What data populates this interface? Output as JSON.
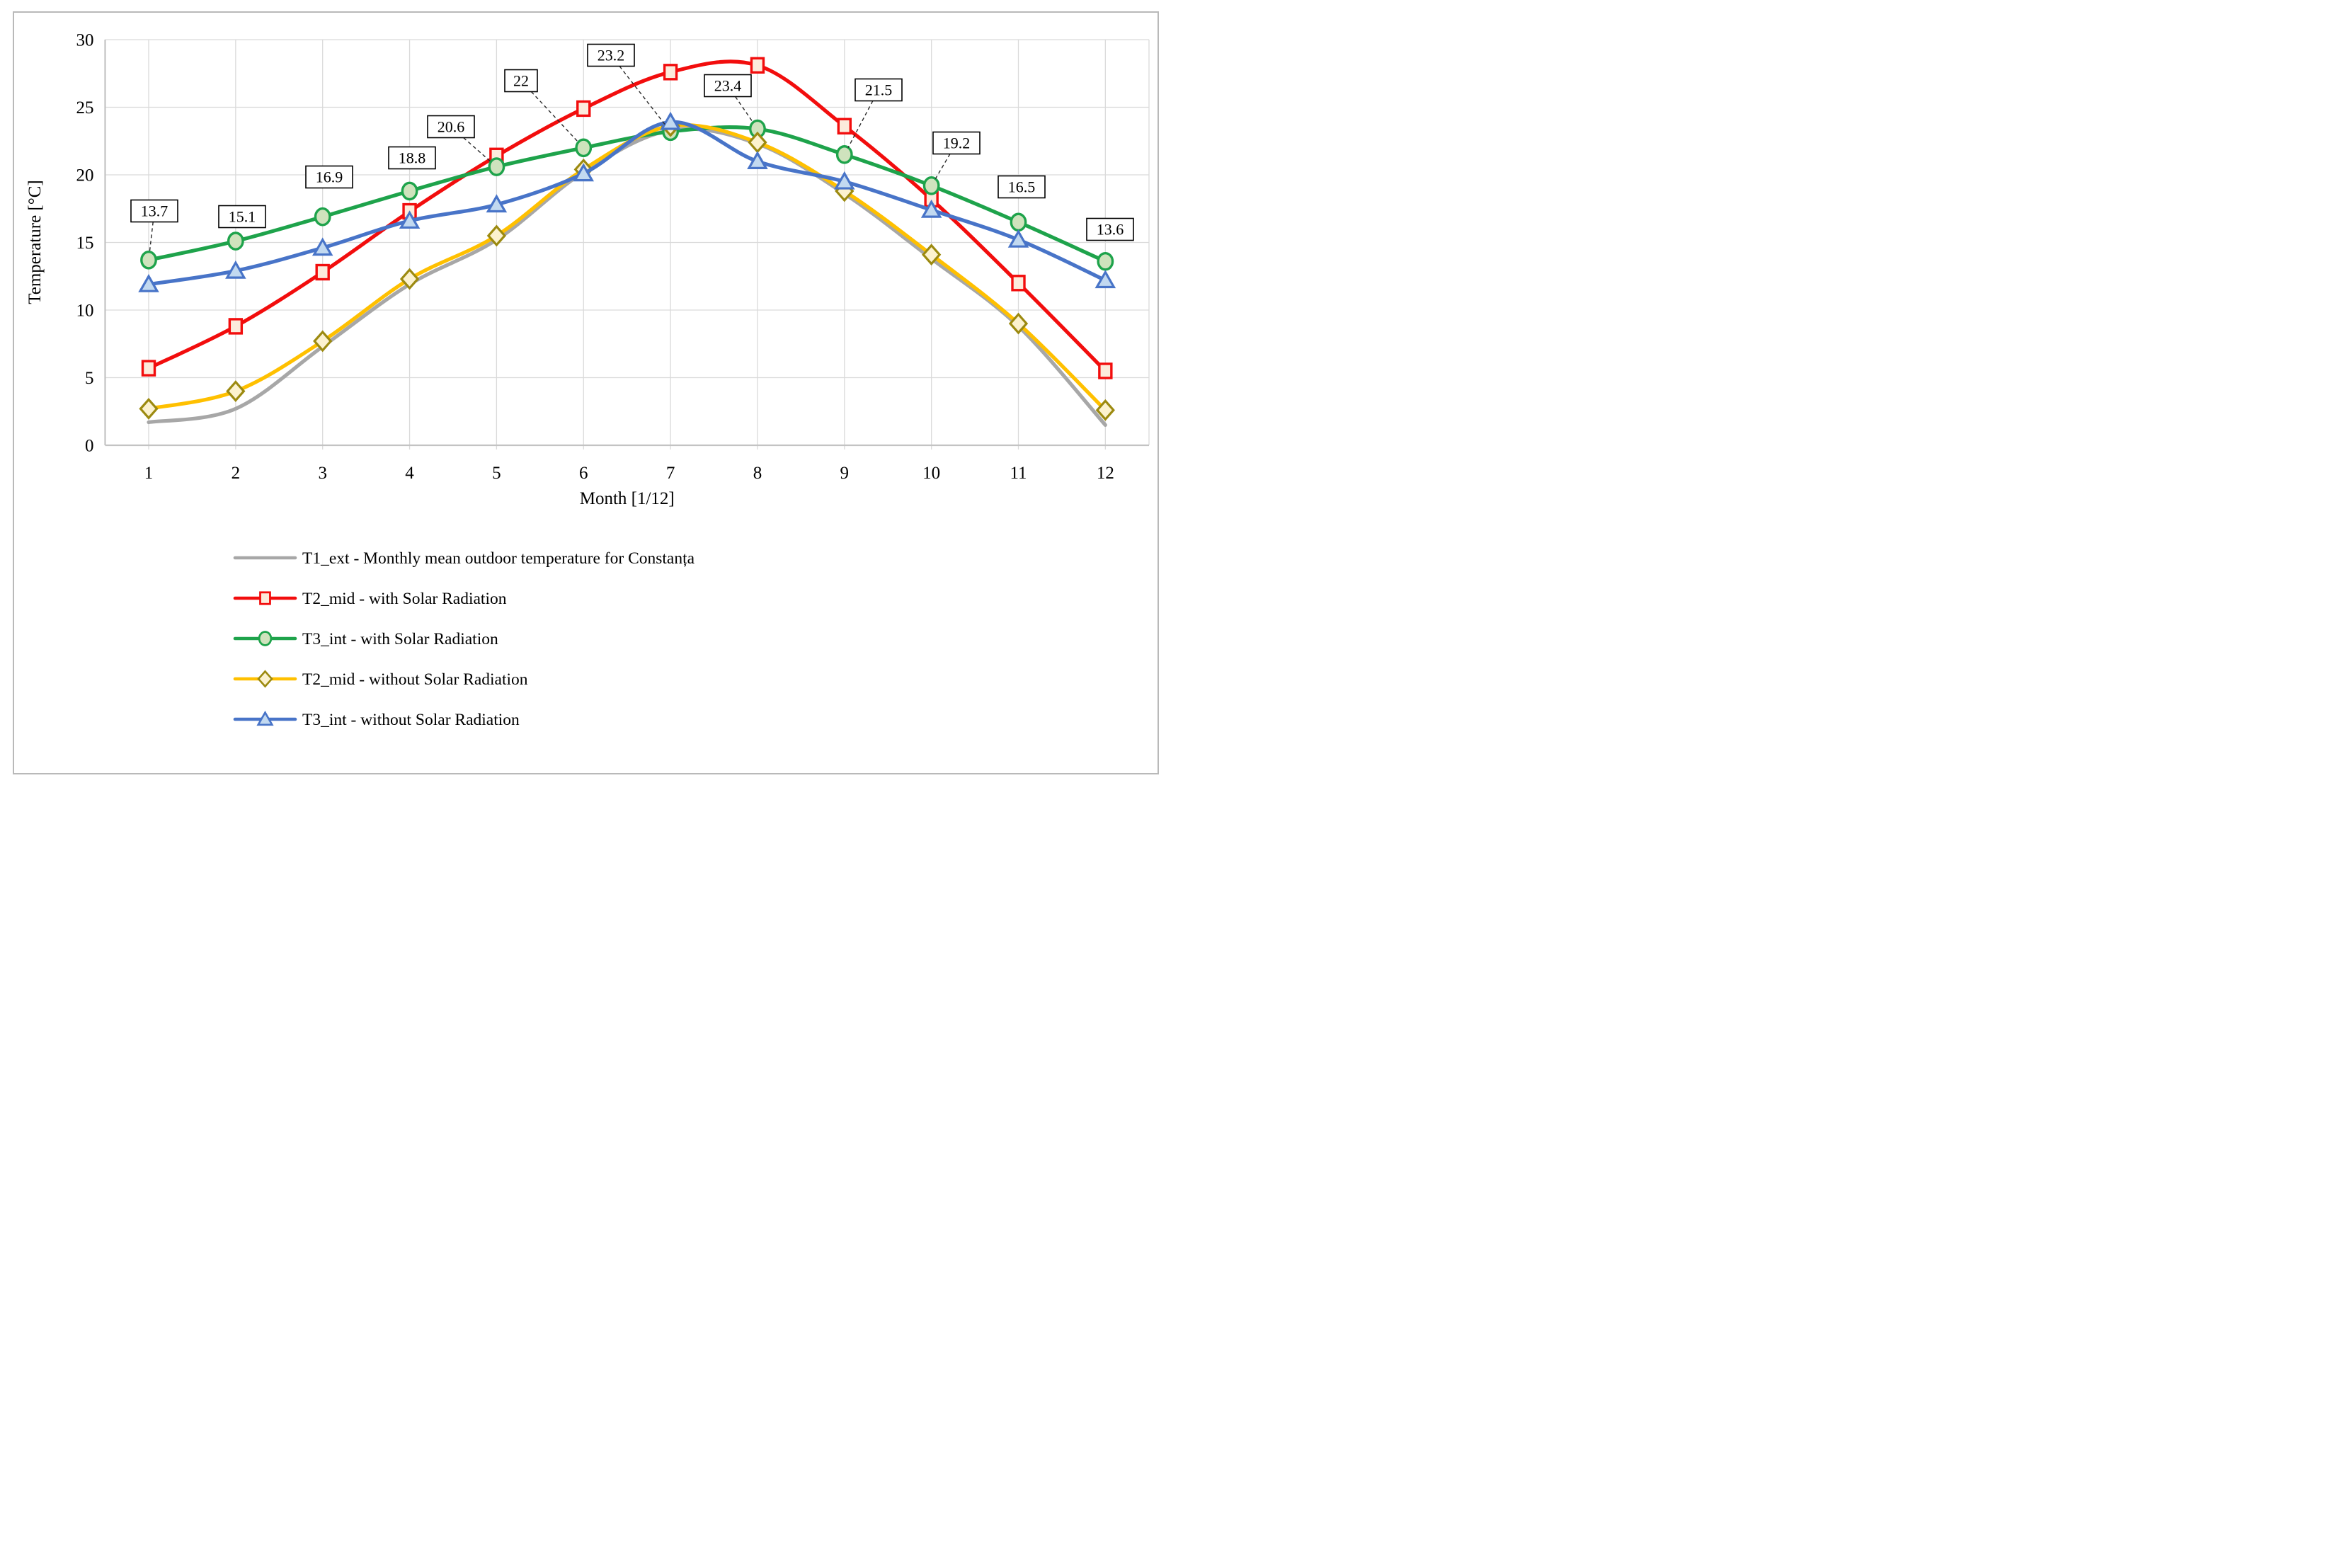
{
  "figure": {
    "xlabel": "Month [1/12]",
    "ylabel": "Temperature [°C]"
  },
  "chart_data": {
    "type": "line",
    "x": [
      1,
      2,
      3,
      4,
      5,
      6,
      7,
      8,
      9,
      10,
      11,
      12
    ],
    "xlabel": "Month [1/12]",
    "ylabel": "Temperature [°C]",
    "ylim": [
      0,
      30
    ],
    "yticks": [
      0,
      5,
      10,
      15,
      20,
      25,
      30
    ],
    "grid": true,
    "legend_position": "bottom-left",
    "smoothed_lines": true,
    "series": [
      {
        "name": "T1_ext - Monthly mean outdoor temperature for Constanța",
        "color": "#A7A7A7",
        "marker": "none",
        "values": [
          1.7,
          2.7,
          7.3,
          11.9,
          15.2,
          20.2,
          23.3,
          22.3,
          18.6,
          13.8,
          8.8,
          1.5
        ]
      },
      {
        "name": "T2_mid - with Solar Radiation",
        "color": "#F20D0D",
        "marker": "square",
        "marker_fill": "#FCEBDC",
        "values": [
          5.7,
          8.8,
          12.8,
          17.3,
          21.4,
          24.9,
          27.6,
          28.1,
          23.6,
          18.2,
          12.0,
          5.5
        ]
      },
      {
        "name": "T3_int - with Solar Radiation",
        "color": "#1EA34B",
        "marker": "circle",
        "marker_fill": "#CFE3BD",
        "values": [
          13.7,
          15.1,
          16.9,
          18.8,
          20.6,
          22,
          23.2,
          23.4,
          21.5,
          19.2,
          16.5,
          13.6
        ],
        "data_labels": [
          "13.7",
          "15.1",
          "16.9",
          "18.8",
          "20.6",
          "22",
          "23.2",
          "23.4",
          "21.5",
          "19.2",
          "16.5",
          "13.6"
        ]
      },
      {
        "name": "T2_mid - without Solar Radiation",
        "color": "#FFC000",
        "marker": "diamond",
        "marker_fill": "#FCF2CF",
        "marker_stroke": "#9C8A10",
        "values": [
          2.7,
          4.0,
          7.7,
          12.3,
          15.5,
          20.4,
          23.6,
          22.4,
          18.8,
          14.1,
          9.0,
          2.6
        ]
      },
      {
        "name": "T3_int - without Solar Radiation",
        "color": "#4874C8",
        "marker": "triangle",
        "marker_fill": "#C2D9F0",
        "values": [
          11.9,
          12.9,
          14.6,
          16.6,
          17.8,
          20.1,
          23.9,
          21.0,
          19.5,
          17.4,
          15.2,
          12.2
        ]
      }
    ]
  }
}
